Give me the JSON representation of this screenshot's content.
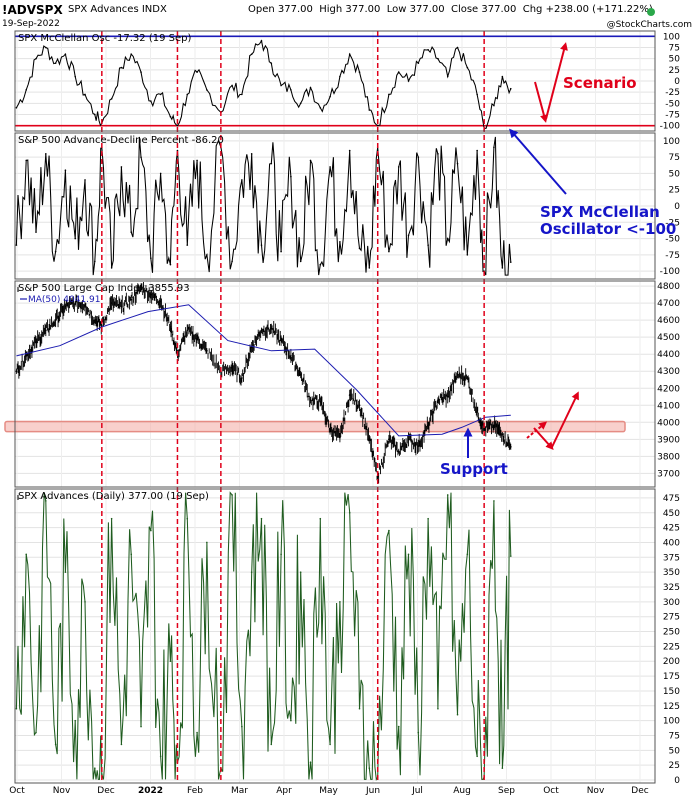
{
  "header": {
    "symbol": "!ADVSPX",
    "name": "SPX Advances INDX",
    "date": "19-Sep-2022",
    "ohlc_text": "Open 377.00  High 377.00  Low 377.00  Close 377.00  Chg +238.00 (+171.22%)",
    "copyright": "@StockCharts.com"
  },
  "colors": {
    "osc_line": "#000000",
    "ad_line": "#000000",
    "price_bars": "#000000",
    "ma_line": "#1c1cb0",
    "advances_line": "#1f5c1f",
    "vline": "#e0001a",
    "band_fill": "#f3b0aa",
    "blue_annotation": "#1515c8",
    "red_annotation": "#e0001a"
  },
  "x_axis": {
    "labels": [
      "Oct",
      "Nov",
      "Dec",
      "2022",
      "Feb",
      "Mar",
      "Apr",
      "May",
      "Jun",
      "Jul",
      "Aug",
      "Sep",
      "Oct",
      "Nov",
      "Dec"
    ]
  },
  "vlines_dates": [
    "2021-12-01",
    "2022-01-24",
    "2022-02-24",
    "2022-06-16",
    "2022-08-31"
  ],
  "annotations": {
    "scenario": "Scenario",
    "oscillator_note_line1": "SPX McClellan",
    "oscillator_note_line2": "Oscillator <-100",
    "support": "Support"
  },
  "chart_data": [
    {
      "type": "line",
      "title": "SPX McClellan Osc -17.32 (19 Sep)",
      "ylim": [
        -112,
        112
      ],
      "yticks": [
        100,
        75,
        50,
        25,
        0,
        -25,
        -50,
        -75,
        -100
      ],
      "hlines": [
        100,
        -100
      ],
      "series": [
        {
          "dates": [
            "2021-10-01",
            "2021-10-08",
            "2021-10-15",
            "2021-10-22",
            "2021-10-29",
            "2021-11-05",
            "2021-11-12",
            "2021-11-19",
            "2021-11-26",
            "2021-12-01",
            "2021-12-08",
            "2021-12-15",
            "2021-12-22",
            "2021-12-29",
            "2022-01-05",
            "2022-01-12",
            "2022-01-19",
            "2022-01-24",
            "2022-01-31",
            "2022-02-07",
            "2022-02-14",
            "2022-02-24",
            "2022-03-04",
            "2022-03-11",
            "2022-03-18",
            "2022-03-25",
            "2022-04-01",
            "2022-04-08",
            "2022-04-15",
            "2022-04-22",
            "2022-04-29",
            "2022-05-06",
            "2022-05-13",
            "2022-05-20",
            "2022-05-27",
            "2022-06-03",
            "2022-06-10",
            "2022-06-16",
            "2022-06-24",
            "2022-07-01",
            "2022-07-08",
            "2022-07-15",
            "2022-07-22",
            "2022-07-29",
            "2022-08-05",
            "2022-08-12",
            "2022-08-19",
            "2022-08-26",
            "2022-08-31",
            "2022-09-07",
            "2022-09-13",
            "2022-09-19"
          ],
          "values": [
            -60,
            -20,
            50,
            75,
            40,
            60,
            10,
            -30,
            -75,
            -95,
            -40,
            30,
            60,
            20,
            -45,
            -30,
            -80,
            -100,
            -30,
            20,
            -20,
            -70,
            -10,
            -30,
            60,
            90,
            40,
            -10,
            -20,
            -50,
            -15,
            -60,
            -35,
            10,
            60,
            20,
            -65,
            -100,
            -30,
            20,
            0,
            40,
            70,
            50,
            10,
            75,
            30,
            -30,
            -110,
            -55,
            10,
            -17.32
          ]
        }
      ]
    },
    {
      "type": "line",
      "title": "S&P 500 Advance-Decline Percent -86.20",
      "ylim": [
        -112,
        112
      ],
      "yticks": [
        100,
        75,
        50,
        25,
        0,
        -25,
        -50,
        -75,
        -100
      ],
      "series": [
        {
          "dates": [
            "2021-10-01",
            "2021-10-08",
            "2021-10-15",
            "2021-10-22",
            "2021-10-29",
            "2021-11-05",
            "2021-11-12",
            "2021-11-19",
            "2021-11-26",
            "2021-12-01",
            "2021-12-08",
            "2021-12-15",
            "2021-12-22",
            "2021-12-29",
            "2022-01-05",
            "2022-01-12",
            "2022-01-19",
            "2022-01-24",
            "2022-01-31",
            "2022-02-07",
            "2022-02-14",
            "2022-02-24",
            "2022-03-04",
            "2022-03-11",
            "2022-03-18",
            "2022-03-25",
            "2022-04-01",
            "2022-04-08",
            "2022-04-15",
            "2022-04-22",
            "2022-04-29",
            "2022-05-06",
            "2022-05-13",
            "2022-05-20",
            "2022-05-27",
            "2022-06-03",
            "2022-06-10",
            "2022-06-16",
            "2022-06-24",
            "2022-07-01",
            "2022-07-08",
            "2022-07-15",
            "2022-07-22",
            "2022-07-29",
            "2022-08-05",
            "2022-08-12",
            "2022-08-19",
            "2022-08-26",
            "2022-08-31",
            "2022-09-07",
            "2022-09-13",
            "2022-09-19"
          ],
          "values": [
            -60,
            70,
            -40,
            80,
            -70,
            55,
            -50,
            40,
            -85,
            90,
            -95,
            60,
            -40,
            75,
            -80,
            50,
            -90,
            85,
            -60,
            70,
            -75,
            90,
            -85,
            40,
            80,
            -60,
            65,
            -70,
            45,
            -85,
            70,
            -90,
            60,
            -55,
            85,
            -65,
            -95,
            90,
            -70,
            60,
            -45,
            75,
            -60,
            80,
            -50,
            65,
            -75,
            85,
            -100,
            90,
            -95,
            -86.2
          ]
        }
      ]
    },
    {
      "type": "candlestick",
      "title": "S&P 500 Large Cap Index 3855.93",
      "ylim": [
        3620,
        4830
      ],
      "yticks": [
        4800,
        4700,
        4600,
        4500,
        4400,
        4300,
        4200,
        4100,
        4000,
        3900,
        3800,
        3700
      ],
      "support_band": [
        3945,
        4005
      ],
      "series": [
        {
          "name": "S&P 500 Large Cap Index",
          "dates": [
            "2021-10-01",
            "2021-10-08",
            "2021-10-15",
            "2021-10-22",
            "2021-10-29",
            "2021-11-05",
            "2021-11-12",
            "2021-11-19",
            "2021-11-26",
            "2021-12-01",
            "2021-12-08",
            "2021-12-15",
            "2021-12-22",
            "2021-12-29",
            "2022-01-05",
            "2022-01-12",
            "2022-01-19",
            "2022-01-24",
            "2022-01-31",
            "2022-02-07",
            "2022-02-14",
            "2022-02-24",
            "2022-03-04",
            "2022-03-11",
            "2022-03-18",
            "2022-03-25",
            "2022-04-01",
            "2022-04-08",
            "2022-04-15",
            "2022-04-22",
            "2022-04-29",
            "2022-05-06",
            "2022-05-13",
            "2022-05-20",
            "2022-05-27",
            "2022-06-03",
            "2022-06-10",
            "2022-06-16",
            "2022-06-24",
            "2022-07-01",
            "2022-07-08",
            "2022-07-15",
            "2022-07-22",
            "2022-07-29",
            "2022-08-05",
            "2022-08-12",
            "2022-08-19",
            "2022-08-26",
            "2022-08-31",
            "2022-09-07",
            "2022-09-13",
            "2022-09-19"
          ],
          "close": [
            4300,
            4390,
            4470,
            4540,
            4600,
            4680,
            4700,
            4690,
            4600,
            4570,
            4700,
            4680,
            4720,
            4790,
            4750,
            4710,
            4560,
            4400,
            4540,
            4490,
            4420,
            4300,
            4320,
            4260,
            4440,
            4540,
            4550,
            4480,
            4390,
            4280,
            4130,
            4120,
            3960,
            3910,
            4160,
            4100,
            3900,
            3680,
            3900,
            3830,
            3900,
            3860,
            3980,
            4130,
            4150,
            4280,
            4260,
            4060,
            3960,
            3980,
            3930,
            3855.93
          ]
        },
        {
          "name": "MA(50) 4041.91",
          "dates": [
            "2021-10-01",
            "2021-11-01",
            "2021-12-01",
            "2022-01-03",
            "2022-02-01",
            "2022-03-01",
            "2022-04-01",
            "2022-05-02",
            "2022-06-01",
            "2022-07-01",
            "2022-08-01",
            "2022-08-15",
            "2022-09-01",
            "2022-09-19"
          ],
          "values": [
            4390,
            4450,
            4560,
            4650,
            4690,
            4480,
            4420,
            4430,
            4190,
            3920,
            3930,
            3970,
            4030,
            4041.91
          ]
        }
      ]
    },
    {
      "type": "line",
      "title": "SPX Advances (Daily) 377.00 (19 Sep)",
      "ylim": [
        -5,
        490
      ],
      "yticks": [
        475,
        450,
        425,
        400,
        375,
        350,
        325,
        300,
        275,
        250,
        225,
        200,
        175,
        150,
        125,
        100,
        75,
        50,
        25,
        0
      ],
      "series": [
        {
          "dates": [
            "2021-10-01",
            "2021-10-08",
            "2021-10-15",
            "2021-10-22",
            "2021-10-29",
            "2021-11-05",
            "2021-11-12",
            "2021-11-19",
            "2021-11-26",
            "2021-12-01",
            "2021-12-08",
            "2021-12-15",
            "2021-12-22",
            "2021-12-29",
            "2022-01-05",
            "2022-01-12",
            "2022-01-19",
            "2022-01-24",
            "2022-01-31",
            "2022-02-07",
            "2022-02-14",
            "2022-02-24",
            "2022-03-04",
            "2022-03-11",
            "2022-03-18",
            "2022-03-25",
            "2022-04-01",
            "2022-04-08",
            "2022-04-15",
            "2022-04-22",
            "2022-04-29",
            "2022-05-06",
            "2022-05-13",
            "2022-05-20",
            "2022-05-27",
            "2022-06-03",
            "2022-06-10",
            "2022-06-16",
            "2022-06-24",
            "2022-07-01",
            "2022-07-08",
            "2022-07-15",
            "2022-07-22",
            "2022-07-29",
            "2022-08-05",
            "2022-08-12",
            "2022-08-19",
            "2022-08-26",
            "2022-08-31",
            "2022-09-07",
            "2022-09-13",
            "2022-09-19"
          ],
          "values": [
            120,
            380,
            80,
            470,
            60,
            350,
            100,
            300,
            20,
            10,
            440,
            60,
            380,
            90,
            420,
            40,
            200,
            30,
            440,
            80,
            400,
            20,
            480,
            90,
            350,
            440,
            60,
            380,
            100,
            350,
            30,
            440,
            60,
            300,
            450,
            120,
            20,
            5,
            420,
            90,
            380,
            80,
            440,
            120,
            480,
            110,
            380,
            40,
            5,
            470,
            20,
            377
          ]
        }
      ]
    }
  ]
}
